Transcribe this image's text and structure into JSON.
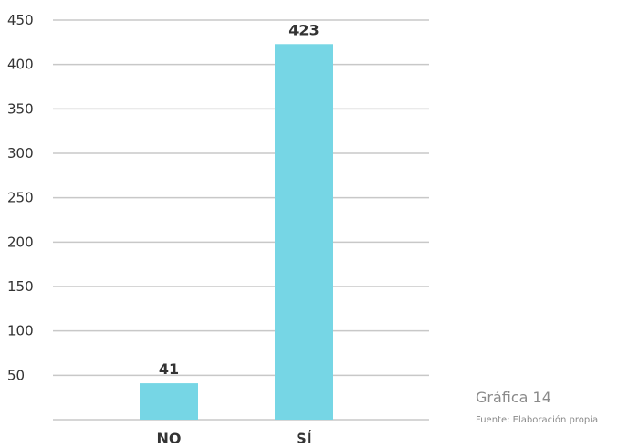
{
  "chart_data": {
    "type": "bar",
    "categories": [
      "NO",
      "SÍ"
    ],
    "values": [
      41,
      423
    ],
    "data_labels": [
      "41",
      "423"
    ],
    "ylim": [
      0,
      450
    ],
    "yticks": [
      50,
      100,
      150,
      200,
      250,
      300,
      350,
      400,
      450
    ],
    "grid": true,
    "bar_color": "#76d6e5",
    "gridline_color": "#c8c8c8",
    "text_color": "#333333"
  },
  "caption": {
    "title": "Gráfica 14",
    "source": "Fuente: Elaboración propia"
  }
}
